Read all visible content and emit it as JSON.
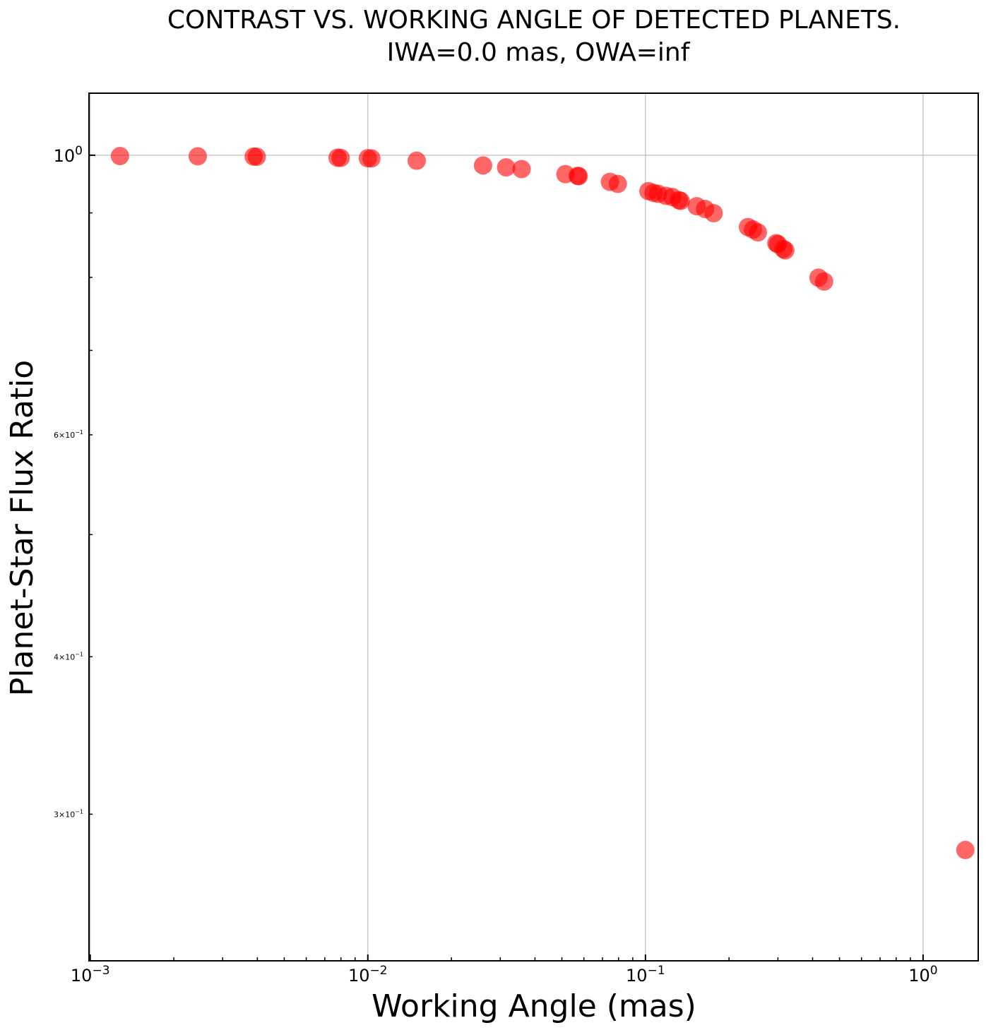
{
  "chart_data": {
    "type": "scatter",
    "title": [
      "CONTRAST VS. WORKING ANGLE OF DETECTED PLANETS.",
      "IWA=0.0 mas, OWA=inf"
    ],
    "xlabel": "Working Angle (mas)",
    "ylabel": "Planet-Star Flux Ratio",
    "x_scale": "log",
    "y_scale": "log",
    "xlim": [
      0.00099,
      1.58
    ],
    "ylim": [
      0.2295,
      1.12
    ],
    "grid": true,
    "x_major_ticks": [
      {
        "value": 0.001,
        "base": "10",
        "exp": "−3"
      },
      {
        "value": 0.01,
        "base": "10",
        "exp": "−2"
      },
      {
        "value": 0.1,
        "base": "10",
        "exp": "−1"
      },
      {
        "value": 1,
        "base": "10",
        "exp": "0"
      }
    ],
    "y_major_ticks": [
      {
        "value": 1.0,
        "base": "10",
        "exp": "0"
      }
    ],
    "y_minor_labeled_ticks": [
      {
        "value": 0.6,
        "mant": "6×10",
        "exp": "−1"
      },
      {
        "value": 0.4,
        "mant": "4×10",
        "exp": "−1"
      },
      {
        "value": 0.3,
        "mant": "3×10",
        "exp": "−1"
      }
    ],
    "y_minor_unlabeled_ticks": [
      0.9,
      0.8,
      0.7,
      0.5
    ],
    "marker_color": "#ff0000",
    "marker_opacity": 0.6,
    "points": [
      {
        "x": 0.00128,
        "y": 0.9985
      },
      {
        "x": 0.00244,
        "y": 0.998
      },
      {
        "x": 0.00388,
        "y": 0.9975
      },
      {
        "x": 0.00398,
        "y": 0.9972
      },
      {
        "x": 0.00778,
        "y": 0.9955
      },
      {
        "x": 0.00798,
        "y": 0.9952
      },
      {
        "x": 0.01,
        "y": 0.9945
      },
      {
        "x": 0.0103,
        "y": 0.9942
      },
      {
        "x": 0.015,
        "y": 0.99
      },
      {
        "x": 0.026,
        "y": 0.9815
      },
      {
        "x": 0.0315,
        "y": 0.978
      },
      {
        "x": 0.0358,
        "y": 0.975
      },
      {
        "x": 0.0515,
        "y": 0.966
      },
      {
        "x": 0.057,
        "y": 0.963
      },
      {
        "x": 0.0575,
        "y": 0.9625
      },
      {
        "x": 0.0745,
        "y": 0.9525
      },
      {
        "x": 0.0795,
        "y": 0.949
      },
      {
        "x": 0.1025,
        "y": 0.9365
      },
      {
        "x": 0.107,
        "y": 0.9335
      },
      {
        "x": 0.111,
        "y": 0.932
      },
      {
        "x": 0.1185,
        "y": 0.9285
      },
      {
        "x": 0.125,
        "y": 0.9265
      },
      {
        "x": 0.132,
        "y": 0.921
      },
      {
        "x": 0.134,
        "y": 0.92
      },
      {
        "x": 0.153,
        "y": 0.911
      },
      {
        "x": 0.164,
        "y": 0.9065
      },
      {
        "x": 0.176,
        "y": 0.8995
      },
      {
        "x": 0.234,
        "y": 0.877
      },
      {
        "x": 0.244,
        "y": 0.873
      },
      {
        "x": 0.254,
        "y": 0.8685
      },
      {
        "x": 0.296,
        "y": 0.8515
      },
      {
        "x": 0.3,
        "y": 0.85
      },
      {
        "x": 0.314,
        "y": 0.8425
      },
      {
        "x": 0.319,
        "y": 0.8405
      },
      {
        "x": 0.42,
        "y": 0.7995
      },
      {
        "x": 0.44,
        "y": 0.794
      },
      {
        "x": 1.42,
        "y": 0.281
      }
    ]
  }
}
